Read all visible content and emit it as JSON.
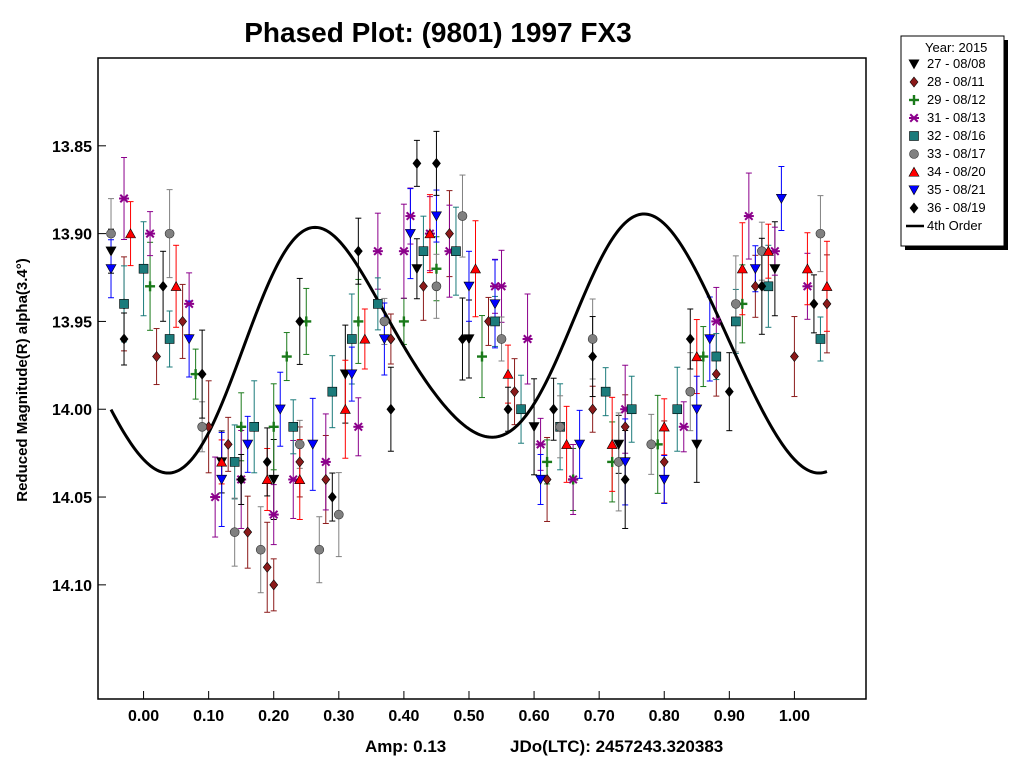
{
  "chart_data": {
    "type": "scatter",
    "title": "Phased Plot: (9801) 1997 FX3",
    "xlabel": "",
    "ylabel": "Reduced Magnitude(R) alpha(3.4°)",
    "xlim": [
      -0.07,
      1.11
    ],
    "ylim": [
      13.8,
      14.165
    ],
    "y_inverted": true,
    "x_ticks": [
      0.0,
      0.1,
      0.2,
      0.3,
      0.4,
      0.5,
      0.6,
      0.7,
      0.8,
      0.9,
      1.0
    ],
    "x_tick_labels": [
      "0.00",
      "0.10",
      "0.20",
      "0.30",
      "0.40",
      "0.50",
      "0.60",
      "0.70",
      "0.80",
      "0.90",
      "1.00"
    ],
    "y_ticks": [
      13.85,
      13.9,
      13.95,
      14.0,
      14.05,
      14.1
    ],
    "y_tick_labels": [
      "13.85",
      "13.90",
      "13.95",
      "14.00",
      "14.05",
      "14.10"
    ],
    "grid": false,
    "legend_position": "outside-top-right",
    "legend_title": "Year: 2015",
    "amp_text": "Amp: 0.13",
    "jdo_text": "JDo(LTC): 2457243.320383",
    "fit": {
      "name": "4th Order",
      "color": "#000000",
      "mean": 13.9612,
      "harmonics": [
        {
          "n": 1,
          "a": 0.0054,
          "b": 0.0052
        },
        {
          "n": 2,
          "a": 0.0628,
          "b": 0.0208
        },
        {
          "n": 3,
          "a": 0.0033,
          "b": 0.0019
        },
        {
          "n": 4,
          "a": -0.0041,
          "b": 0.0024
        }
      ]
    },
    "series": [
      {
        "name": "27 - 08/08",
        "marker": "triangle-down",
        "color": "#000000",
        "x": [
          -0.05,
          0.12,
          0.2,
          0.31,
          0.42,
          0.5,
          0.6,
          0.73,
          0.85,
          0.97
        ],
        "y": [
          13.91,
          14.03,
          14.04,
          13.98,
          13.92,
          13.96,
          14.01,
          14.02,
          14.02,
          13.92
        ]
      },
      {
        "name": "28 - 08/11",
        "marker": "diamond",
        "color": "#8b1a1a",
        "x": [
          -0.03,
          0.02,
          0.06,
          0.1,
          0.13,
          0.16,
          0.19,
          0.2,
          0.24,
          0.28,
          0.38,
          0.43,
          0.47,
          0.53,
          0.57,
          0.62,
          0.69,
          0.74,
          0.8,
          0.88,
          0.94,
          1.0,
          1.05
        ],
        "y": [
          13.94,
          13.97,
          13.95,
          14.01,
          14.02,
          14.07,
          14.09,
          14.1,
          14.03,
          14.04,
          13.96,
          13.93,
          13.9,
          13.95,
          13.99,
          14.04,
          14.0,
          14.01,
          14.03,
          13.98,
          13.93,
          13.97,
          13.94
        ]
      },
      {
        "name": "29 - 08/12",
        "marker": "plus",
        "color": "#1a7a1a",
        "x": [
          0.01,
          0.08,
          0.15,
          0.2,
          0.22,
          0.25,
          0.33,
          0.4,
          0.45,
          0.52,
          0.62,
          0.66,
          0.72,
          0.79,
          0.86,
          0.92
        ],
        "y": [
          13.93,
          13.98,
          14.01,
          14.01,
          13.97,
          13.95,
          13.95,
          13.95,
          13.92,
          13.97,
          14.03,
          14.04,
          14.03,
          14.02,
          13.97,
          13.94
        ]
      },
      {
        "name": "31 - 08/13",
        "marker": "asterisk",
        "color": "#8b008b",
        "x": [
          -0.03,
          0.01,
          0.07,
          0.11,
          0.15,
          0.2,
          0.23,
          0.28,
          0.33,
          0.36,
          0.4,
          0.41,
          0.44,
          0.47,
          0.54,
          0.55,
          0.59,
          0.61,
          0.66,
          0.74,
          0.83,
          0.88,
          0.93,
          0.97,
          1.02
        ],
        "y": [
          13.88,
          13.9,
          13.94,
          14.05,
          14.04,
          14.06,
          14.04,
          14.03,
          14.01,
          13.91,
          13.91,
          13.89,
          13.9,
          13.91,
          13.93,
          13.93,
          13.96,
          14.02,
          14.04,
          14.0,
          14.01,
          13.95,
          13.89,
          13.91,
          13.93
        ]
      },
      {
        "name": "32 - 08/16",
        "marker": "square",
        "color": "#1b7b7b",
        "x": [
          -0.03,
          0.0,
          0.04,
          0.14,
          0.17,
          0.23,
          0.29,
          0.32,
          0.36,
          0.43,
          0.48,
          0.54,
          0.58,
          0.64,
          0.71,
          0.75,
          0.82,
          0.88,
          0.91,
          0.96,
          1.04
        ],
        "y": [
          13.94,
          13.92,
          13.96,
          14.03,
          14.01,
          14.01,
          13.99,
          13.96,
          13.94,
          13.91,
          13.91,
          13.95,
          14.0,
          14.01,
          13.99,
          14.0,
          14.0,
          13.97,
          13.95,
          13.93,
          13.96
        ]
      },
      {
        "name": "33 - 08/17",
        "marker": "circle",
        "color": "#808080",
        "x": [
          -0.05,
          0.04,
          0.09,
          0.14,
          0.18,
          0.24,
          0.27,
          0.3,
          0.37,
          0.45,
          0.49,
          0.55,
          0.64,
          0.69,
          0.73,
          0.78,
          0.84,
          0.91,
          0.95,
          1.04
        ],
        "y": [
          13.9,
          13.9,
          14.01,
          14.07,
          14.08,
          14.02,
          14.08,
          14.06,
          13.95,
          13.93,
          13.89,
          13.96,
          14.01,
          13.96,
          14.03,
          14.02,
          13.99,
          13.94,
          13.91,
          13.9
        ]
      },
      {
        "name": "34 - 08/20",
        "marker": "triangle-up",
        "color": "#ff0000",
        "x": [
          -0.02,
          0.05,
          0.12,
          0.19,
          0.24,
          0.31,
          0.34,
          0.44,
          0.51,
          0.56,
          0.65,
          0.72,
          0.8,
          0.85,
          0.92,
          0.96,
          1.02,
          1.05
        ],
        "y": [
          13.9,
          13.93,
          14.03,
          14.04,
          14.04,
          14.0,
          13.96,
          13.9,
          13.92,
          13.98,
          14.02,
          14.02,
          14.01,
          13.97,
          13.92,
          13.91,
          13.92,
          13.93
        ]
      },
      {
        "name": "35 - 08/21",
        "marker": "triangle-down",
        "color": "#0000ff",
        "x": [
          -0.05,
          0.07,
          0.12,
          0.16,
          0.21,
          0.26,
          0.32,
          0.37,
          0.41,
          0.45,
          0.5,
          0.54,
          0.61,
          0.67,
          0.74,
          0.8,
          0.85,
          0.87,
          0.94,
          0.98
        ],
        "y": [
          13.92,
          13.96,
          14.04,
          14.02,
          14.0,
          14.02,
          13.98,
          13.96,
          13.9,
          13.89,
          13.93,
          13.94,
          14.04,
          14.02,
          14.03,
          14.04,
          14.0,
          13.96,
          13.92,
          13.88
        ]
      },
      {
        "name": "36 - 08/19",
        "marker": "diamond",
        "color": "#000000",
        "x": [
          -0.03,
          0.03,
          0.09,
          0.15,
          0.19,
          0.24,
          0.29,
          0.33,
          0.38,
          0.42,
          0.45,
          0.49,
          0.56,
          0.63,
          0.69,
          0.74,
          0.84,
          0.9,
          0.95,
          1.03
        ],
        "y": [
          13.96,
          13.93,
          13.98,
          14.04,
          14.03,
          13.95,
          14.05,
          13.91,
          14.0,
          13.86,
          13.86,
          13.96,
          14.0,
          14.0,
          13.97,
          14.04,
          13.96,
          13.99,
          13.93,
          13.94
        ]
      }
    ]
  }
}
